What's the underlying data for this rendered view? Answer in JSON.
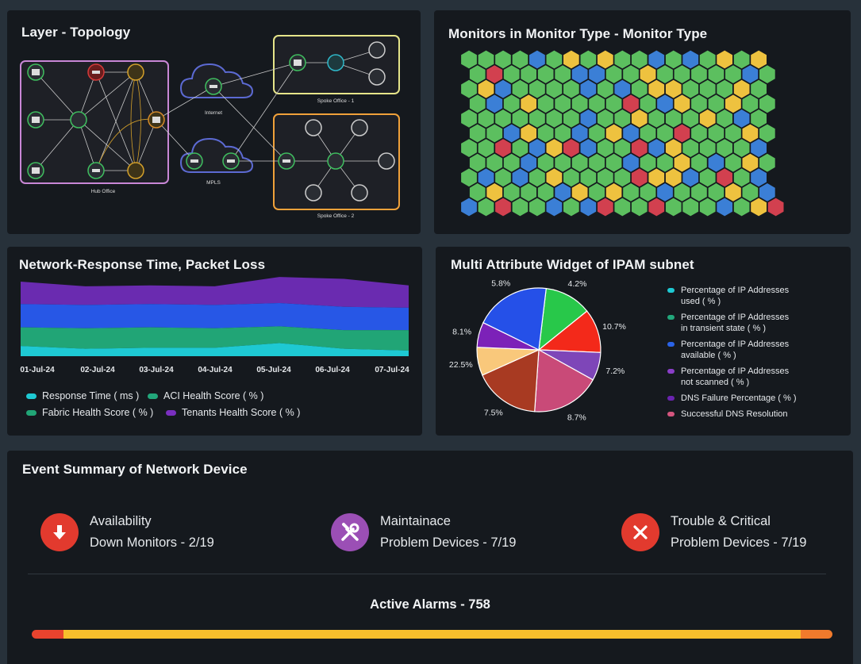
{
  "topology": {
    "title": "Layer - Topology",
    "labels": {
      "hub": "Hub Office",
      "internet": "Internet",
      "mpls": "MPLS",
      "spoke1": "Spoke Office - 1",
      "spoke2": "Spoke Office - 2"
    }
  },
  "monitor_type": {
    "title": "Monitors in Monitor Type - Monitor Type",
    "colors": {
      "green": "#5cbf5f",
      "blue": "#3b7fd6",
      "yellow": "#eec23f",
      "red": "#d2404f"
    },
    "rows": [
      "GGGGBGYGYGGBGBGYGY",
      "GRGGGGBBGGYGGGGGBG",
      "GYBGGGGBGBGYYGGGYG",
      "GBGYGGGGGRGBYGGYGG",
      "GGGGGGGBGGYGGGYGBG",
      "GGBYGGBGYBGGRGGGYG",
      "GGRGBYRBGGRBYGGGGB",
      "GGGBGGGGGBGGYGBGYG",
      "GBGBGYGGGGRYYBGRGB",
      "GYGGGBYGYGGBGGGYGB",
      "BGRGGBGBRGGRGGGBGYR"
    ]
  },
  "response": {
    "title": "Network-Response Time, Packet Loss",
    "legend": [
      {
        "label": "Response Time ( ms )",
        "color": "#1ec9d3"
      },
      {
        "label": "ACI Health Score ( % )",
        "color": "#22a77b"
      },
      {
        "label": "Fabric Health Score ( % )",
        "color": "#21a576"
      },
      {
        "label": "Tenants Health Score ( % )",
        "color": "#7a2fc0"
      }
    ]
  },
  "chart_data": {
    "type": "area",
    "x": [
      "01-Jul-24",
      "02-Jul-24",
      "03-Jul-24",
      "04-Jul-24",
      "05-Jul-24",
      "06-Jul-24",
      "07-Jul-24"
    ],
    "tick_labels": [
      "01-Jul-24",
      "02-Jul-24",
      "03-Jul-24",
      "04-Jul-24",
      "05-Jul-24",
      "06-Jul-24",
      "07-Jul-24"
    ],
    "stacked": true,
    "series": [
      {
        "name": "Response Time ( ms )",
        "color": "#1ec9d3",
        "values": [
          11,
          8,
          9,
          9,
          14,
          8,
          6
        ]
      },
      {
        "name": "Fabric Health Score ( % )",
        "color": "#21a576",
        "values": [
          20,
          22,
          22,
          21,
          18,
          20,
          22
        ]
      },
      {
        "name": "ACI Health Score ( % )",
        "color": "#2757e6",
        "values": [
          25,
          25,
          25,
          25,
          25,
          25,
          24
        ]
      },
      {
        "name": "Tenants Health Score ( % )",
        "color": "#6a2bb0",
        "values": [
          24,
          20,
          20,
          20,
          28,
          30,
          24
        ]
      }
    ],
    "legend_position": "bottom",
    "grid": false
  },
  "ipam": {
    "title": "Multi Attribute Widget of IPAM subnet",
    "legend": [
      {
        "label_l1": "Percentage of IP Addresses",
        "label_l2": "used ( % )",
        "color": "#1ec9d3"
      },
      {
        "label_l1": "Percentage of IP Addresses",
        "label_l2": "in transient state ( % )",
        "color": "#22a77b"
      },
      {
        "label_l1": "Percentage of IP Addresses",
        "label_l2": "available ( % )",
        "color": "#2a63e8"
      },
      {
        "label_l1": "Percentage of IP Addresses",
        "label_l2": "not scanned ( % )",
        "color": "#8a3ec8"
      },
      {
        "label_l1": "DNS Failure Percentage ( % )",
        "label_l2": "",
        "color": "#6a24b0"
      },
      {
        "label_l1": "Successful DNS Resolution",
        "label_l2": "",
        "color": "#d4557e"
      }
    ],
    "pie": [
      {
        "label": "4.2%",
        "value": 15,
        "color": "#28c84a"
      },
      {
        "label": "10.7%",
        "value": 14,
        "color": "#f3291a"
      },
      {
        "label": "7.2%",
        "value": 9,
        "color": "#7e46b8"
      },
      {
        "label": "8.7%",
        "value": 22,
        "color": "#c94a78"
      },
      {
        "label": "7.5%",
        "value": 21,
        "color": "#a83a22"
      },
      {
        "label": "22.5%",
        "value": 9,
        "color": "#f9c87b"
      },
      {
        "label": "8.1%",
        "value": 8,
        "color": "#7c21b8"
      },
      {
        "label": "5.8%",
        "value": 24,
        "color": "#2550e8"
      }
    ]
  },
  "events": {
    "title": "Event Summary of Network Device",
    "items": [
      {
        "line1": "Availability",
        "line2": "Down Monitors - 2/19",
        "icon": "arrow-down-icon",
        "color": "#e23a2e"
      },
      {
        "line1": "Maintainace",
        "line2": "Problem Devices - 7/19",
        "icon": "tools-icon",
        "color": "#9b4fb5"
      },
      {
        "line1": "Trouble & Critical",
        "line2": "Problem Devices - 7/19",
        "icon": "close-icon",
        "color": "#e23a2e"
      }
    ],
    "alarms_label": "Active Alarms - 758",
    "alarm_segments": [
      {
        "fraction": 0.04,
        "color": "#e8432e"
      },
      {
        "fraction": 0.92,
        "color": "#f7be2c"
      },
      {
        "fraction": 0.04,
        "color": "#f07a2c"
      }
    ]
  }
}
